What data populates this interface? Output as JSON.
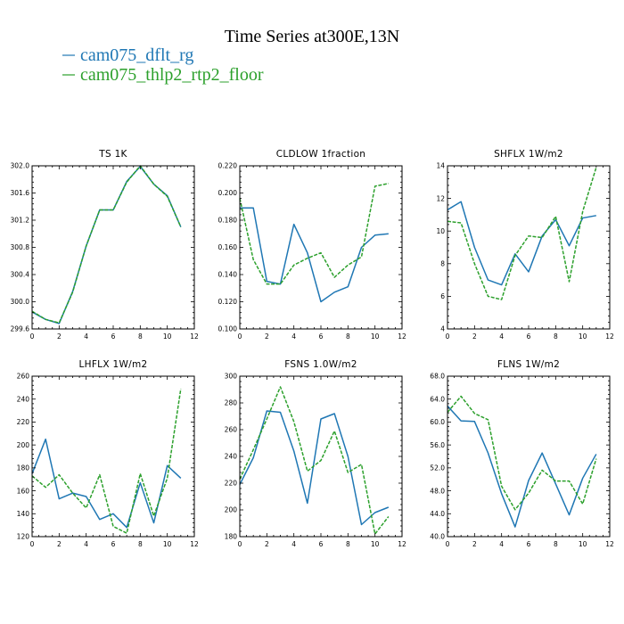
{
  "figure_title": "Time Series at300E,13N",
  "legend": [
    {
      "name": "cam075_dflt_rg",
      "color": "#1f77b4",
      "dash": "solid"
    },
    {
      "name": "cam075_thlp2_rtp2_floor",
      "color": "#2ca02c",
      "dash": "dashed"
    }
  ],
  "chart_data": [
    {
      "type": "line",
      "title": "TS   1K",
      "x": [
        0,
        1,
        2,
        3,
        4,
        5,
        6,
        7,
        8,
        9,
        10,
        11
      ],
      "xlim": [
        0,
        12
      ],
      "xticks": [
        "0",
        "2",
        "4",
        "6",
        "8",
        "10",
        "12"
      ],
      "ylim": [
        299.6,
        302.0
      ],
      "yticks": [
        "299.6",
        "300.0",
        "300.4",
        "300.8",
        "301.2",
        "301.6",
        "302.0"
      ],
      "series": [
        {
          "name": "cam075_dflt_rg",
          "values": [
            299.85,
            299.74,
            299.68,
            300.15,
            300.82,
            301.35,
            301.35,
            301.77,
            301.99,
            301.73,
            301.56,
            301.1
          ]
        },
        {
          "name": "cam075_thlp2_rtp2_floor",
          "values": [
            299.86,
            299.74,
            299.69,
            300.14,
            300.82,
            301.35,
            301.35,
            301.76,
            302.0,
            301.73,
            301.55,
            301.1
          ]
        }
      ]
    },
    {
      "type": "line",
      "title": "CLDLOW   1fraction",
      "x": [
        0,
        1,
        2,
        3,
        4,
        5,
        6,
        7,
        8,
        9,
        10,
        11
      ],
      "xlim": [
        0,
        12
      ],
      "xticks": [
        "0",
        "2",
        "4",
        "6",
        "8",
        "10",
        "12"
      ],
      "ylim": [
        0.1,
        0.22
      ],
      "yticks": [
        "0.100",
        "0.120",
        "0.140",
        "0.160",
        "0.180",
        "0.200",
        "0.220"
      ],
      "series": [
        {
          "name": "cam075_dflt_rg",
          "values": [
            0.189,
            0.189,
            0.135,
            0.133,
            0.177,
            0.156,
            0.12,
            0.127,
            0.131,
            0.16,
            0.169,
            0.17
          ]
        },
        {
          "name": "cam075_thlp2_rtp2_floor",
          "values": [
            0.196,
            0.151,
            0.133,
            0.133,
            0.147,
            0.152,
            0.156,
            0.138,
            0.147,
            0.153,
            0.205,
            0.207
          ]
        }
      ]
    },
    {
      "type": "line",
      "title": "SHFLX   1W/m2",
      "x": [
        0,
        1,
        2,
        3,
        4,
        5,
        6,
        7,
        8,
        9,
        10,
        11
      ],
      "xlim": [
        0,
        12
      ],
      "xticks": [
        "0",
        "2",
        "4",
        "6",
        "8",
        "10",
        "12"
      ],
      "ylim": [
        4,
        14
      ],
      "yticks": [
        "4",
        "6",
        "8",
        "10",
        "12",
        "14"
      ],
      "series": [
        {
          "name": "cam075_dflt_rg",
          "values": [
            11.3,
            11.8,
            9.0,
            7.0,
            6.7,
            8.6,
            7.5,
            9.7,
            10.7,
            9.1,
            10.8,
            10.95
          ]
        },
        {
          "name": "cam075_thlp2_rtp2_floor",
          "values": [
            10.6,
            10.5,
            8.0,
            6.0,
            5.8,
            8.5,
            9.7,
            9.6,
            10.9,
            6.9,
            11.2,
            13.9
          ]
        }
      ]
    },
    {
      "type": "line",
      "title": "LHFLX   1W/m2",
      "x": [
        0,
        1,
        2,
        3,
        4,
        5,
        6,
        7,
        8,
        9,
        10,
        11
      ],
      "xlim": [
        0,
        12
      ],
      "xticks": [
        "0",
        "2",
        "4",
        "6",
        "8",
        "10",
        "12"
      ],
      "ylim": [
        120,
        260
      ],
      "yticks": [
        "120",
        "140",
        "160",
        "180",
        "200",
        "220",
        "240",
        "260"
      ],
      "series": [
        {
          "name": "cam075_dflt_rg",
          "values": [
            175,
            205,
            153,
            158,
            155,
            135,
            140,
            128,
            167,
            132,
            182,
            171
          ]
        },
        {
          "name": "cam075_thlp2_rtp2_floor",
          "values": [
            173,
            163,
            174,
            158,
            145,
            174,
            129,
            123,
            175,
            138,
            171,
            249
          ]
        }
      ]
    },
    {
      "type": "line",
      "title": "FSNS   1.0W/m2",
      "x": [
        0,
        1,
        2,
        3,
        4,
        5,
        6,
        7,
        8,
        9,
        10,
        11
      ],
      "xlim": [
        0,
        12
      ],
      "xticks": [
        "0",
        "2",
        "4",
        "6",
        "8",
        "10",
        "12"
      ],
      "ylim": [
        180,
        300
      ],
      "yticks": [
        "180",
        "200",
        "220",
        "240",
        "260",
        "280",
        "300"
      ],
      "series": [
        {
          "name": "cam075_dflt_rg",
          "values": [
            219,
            239,
            274,
            273,
            244,
            205,
            268,
            272,
            240,
            189,
            198,
            202
          ]
        },
        {
          "name": "cam075_thlp2_rtp2_floor",
          "values": [
            223,
            245,
            268,
            292,
            266,
            229,
            237,
            259,
            228,
            234,
            182,
            195
          ]
        }
      ]
    },
    {
      "type": "line",
      "title": "FLNS   1W/m2",
      "x": [
        0,
        1,
        2,
        3,
        4,
        5,
        6,
        7,
        8,
        9,
        10,
        11
      ],
      "xlim": [
        0,
        12
      ],
      "xticks": [
        "0",
        "2",
        "4",
        "6",
        "8",
        "10",
        "12"
      ],
      "ylim": [
        40.0,
        68.0
      ],
      "yticks": [
        "40.0",
        "44.0",
        "48.0",
        "52.0",
        "56.0",
        "60.0",
        "64.0",
        "68.0"
      ],
      "series": [
        {
          "name": "cam075_dflt_rg",
          "values": [
            62.8,
            60.2,
            60.1,
            54.6,
            47.5,
            41.7,
            49.8,
            54.6,
            49.2,
            43.8,
            50.2,
            54.4
          ]
        },
        {
          "name": "cam075_thlp2_rtp2_floor",
          "values": [
            61.7,
            64.5,
            61.5,
            60.4,
            48.8,
            44.7,
            47.6,
            51.6,
            49.7,
            49.7,
            45.7,
            53.6
          ]
        }
      ]
    }
  ]
}
